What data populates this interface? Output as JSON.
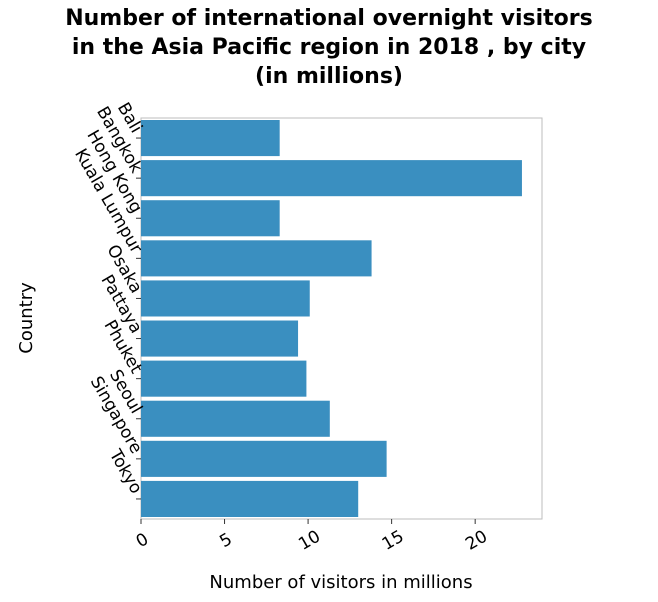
{
  "chart_data": {
    "type": "bar",
    "orientation": "horizontal",
    "title_lines": [
      "Number of international overnight visitors",
      "in the Asia Pacific region in 2018 , by city",
      "(in millions)"
    ],
    "xlabel": "Number of visitors in millions",
    "ylabel": "Country",
    "categories": [
      "Bali",
      "Bangkok",
      "Hong Kong",
      "Kuala Lumpur",
      "Osaka",
      "Pattaya",
      "Phuket",
      "Seoul",
      "Singapore",
      "Tokyo"
    ],
    "values": [
      8.3,
      22.8,
      8.3,
      13.8,
      10.1,
      9.4,
      9.9,
      11.3,
      14.7,
      13.0
    ],
    "xticks": [
      "0",
      "5",
      "10",
      "15",
      "20"
    ],
    "xlim": [
      0,
      24
    ],
    "bar_color": "#3a8fc0",
    "grid": false,
    "legend": "none"
  }
}
